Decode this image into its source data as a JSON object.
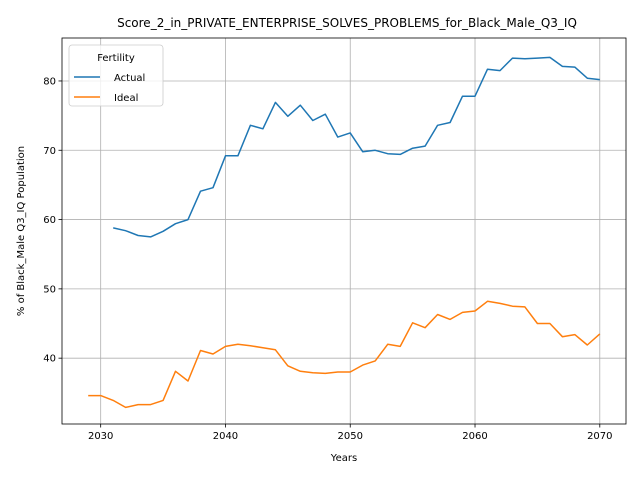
{
  "chart_data": {
    "type": "line",
    "title": "Score_2_in_PRIVATE_ENTERPRISE_SOLVES_PROBLEMS_for_Black_Male_Q3_IQ",
    "xlabel": "Years",
    "ylabel": "% of Black_Male Q3_IQ Population",
    "xlim": [
      2026.9,
      2072.1
    ],
    "ylim": [
      30.5,
      86.2
    ],
    "xticks": [
      2030,
      2040,
      2050,
      2060,
      2070
    ],
    "yticks": [
      40,
      50,
      60,
      70,
      80
    ],
    "grid": true,
    "legend": {
      "title": "Fertility",
      "position": "top-left"
    },
    "series": [
      {
        "name": "Actual",
        "color": "#1f77b4",
        "x": [
          2031,
          2032,
          2033,
          2034,
          2035,
          2036,
          2037,
          2038,
          2039,
          2040,
          2041,
          2042,
          2043,
          2044,
          2045,
          2046,
          2047,
          2048,
          2049,
          2050,
          2051,
          2052,
          2053,
          2054,
          2055,
          2056,
          2057,
          2058,
          2059,
          2060,
          2061,
          2062,
          2063,
          2064,
          2065,
          2066,
          2067,
          2068,
          2069,
          2070
        ],
        "y": [
          58.8,
          58.4,
          57.7,
          57.5,
          58.3,
          59.4,
          60.0,
          64.1,
          64.6,
          69.2,
          69.2,
          73.6,
          73.1,
          76.9,
          74.9,
          76.5,
          74.3,
          75.2,
          71.9,
          72.5,
          69.8,
          70.0,
          69.5,
          69.4,
          70.3,
          70.6,
          73.6,
          74.0,
          77.8,
          77.8,
          81.7,
          81.5,
          83.3,
          83.2,
          83.3,
          83.4,
          82.1,
          82.0,
          80.4,
          80.2
        ]
      },
      {
        "name": "Ideal",
        "color": "#ff7f0e",
        "x": [
          2029,
          2030,
          2031,
          2032,
          2033,
          2034,
          2035,
          2036,
          2037,
          2038,
          2039,
          2040,
          2041,
          2042,
          2043,
          2044,
          2045,
          2046,
          2047,
          2048,
          2049,
          2050,
          2051,
          2052,
          2053,
          2054,
          2055,
          2056,
          2057,
          2058,
          2059,
          2060,
          2061,
          2062,
          2063,
          2064,
          2065,
          2066,
          2067,
          2068,
          2069,
          2070
        ],
        "y": [
          34.6,
          34.6,
          33.9,
          32.9,
          33.3,
          33.3,
          33.9,
          38.1,
          36.7,
          41.1,
          40.6,
          41.7,
          42.0,
          41.8,
          41.5,
          41.2,
          38.9,
          38.1,
          37.9,
          37.8,
          38.0,
          38.0,
          39.0,
          39.6,
          42.0,
          41.7,
          45.1,
          44.4,
          46.3,
          45.6,
          46.6,
          46.8,
          48.2,
          47.9,
          47.5,
          47.4,
          45.0,
          45.0,
          43.1,
          43.4,
          41.9,
          43.5
        ]
      }
    ]
  }
}
